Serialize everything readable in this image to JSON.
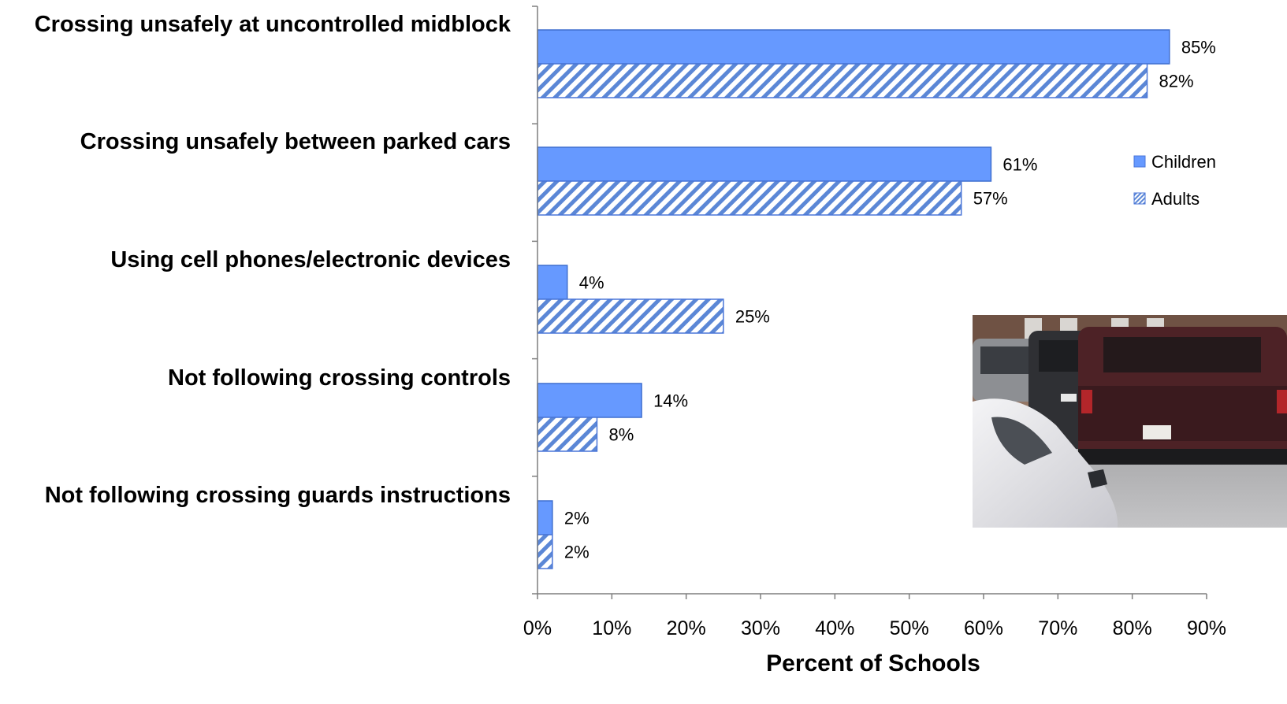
{
  "chart_data": {
    "type": "bar",
    "orientation": "horizontal",
    "categories": [
      "Crossing unsafely at uncontrolled midblock",
      "Crossing unsafely between parked cars",
      "Using cell phones/electronic devices",
      "Not following crossing controls",
      "Not following crossing guards instructions"
    ],
    "series": [
      {
        "name": "Children",
        "values": [
          85,
          61,
          4,
          14,
          2
        ],
        "data_labels": [
          "85%",
          "61%",
          "4%",
          "14%",
          "2%"
        ],
        "style": "solid",
        "color": "#6699ff"
      },
      {
        "name": "Adults",
        "values": [
          82,
          57,
          25,
          8,
          2
        ],
        "data_labels": [
          "82%",
          "57%",
          "25%",
          "8%",
          "2%"
        ],
        "style": "diagonal-hatch",
        "color": "#5b87d6"
      }
    ],
    "xlabel": "Percent of Schools",
    "ylabel": "",
    "xlim": [
      0,
      90
    ],
    "x_ticks": [
      0,
      10,
      20,
      30,
      40,
      50,
      60,
      70,
      80,
      90
    ],
    "x_tick_labels": [
      "0%",
      "10%",
      "20%",
      "30%",
      "40%",
      "50%",
      "60%",
      "70%",
      "80%",
      "90%"
    ],
    "grid": false,
    "legend_position": "right",
    "inset_photo": "parked-cars-photo"
  }
}
